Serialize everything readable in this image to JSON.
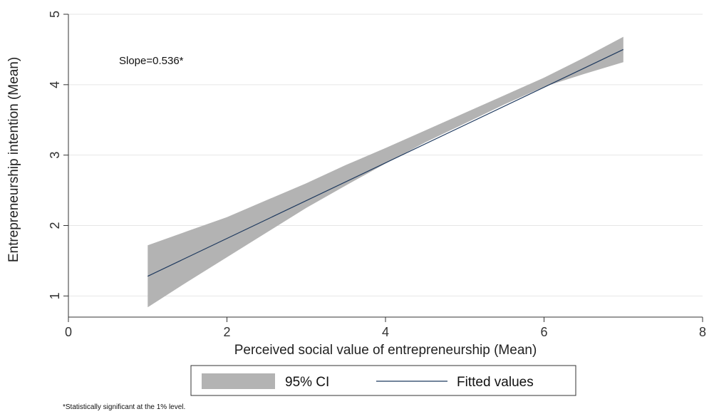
{
  "chart_data": {
    "type": "line",
    "xlabel": "Perceived social value of entrepreneurship (Mean)",
    "ylabel": "Entrepreneurship intention (Mean)",
    "xlim": [
      0,
      8
    ],
    "ylim": [
      0.7,
      5
    ],
    "xticks": [
      0,
      2,
      4,
      6,
      8
    ],
    "yticks": [
      1,
      2,
      3,
      4,
      5
    ],
    "grid": "horizontal",
    "annotation": "Slope=0.536*",
    "series": [
      {
        "name": "Fitted values",
        "x": [
          1,
          7
        ],
        "y": [
          1.28,
          4.5
        ],
        "color": "#1f3a5f"
      }
    ],
    "ci_band": {
      "name": "95% CI",
      "x": [
        1,
        1.5,
        2,
        2.5,
        3,
        3.5,
        4,
        4.5,
        5,
        5.5,
        6,
        6.5,
        7
      ],
      "lower": [
        0.84,
        1.2,
        1.55,
        1.9,
        2.25,
        2.57,
        2.88,
        3.18,
        3.45,
        3.72,
        3.97,
        4.15,
        4.32
      ],
      "upper": [
        1.72,
        1.92,
        2.12,
        2.36,
        2.6,
        2.86,
        3.1,
        3.35,
        3.6,
        3.85,
        4.1,
        4.38,
        4.68
      ],
      "color": "#b3b3b3"
    },
    "legend": {
      "position": "bottom",
      "items": [
        {
          "label": "95% CI",
          "kind": "band"
        },
        {
          "label": "Fitted values",
          "kind": "line"
        }
      ]
    },
    "footnote": "*Statistically significant at the 1% level."
  }
}
